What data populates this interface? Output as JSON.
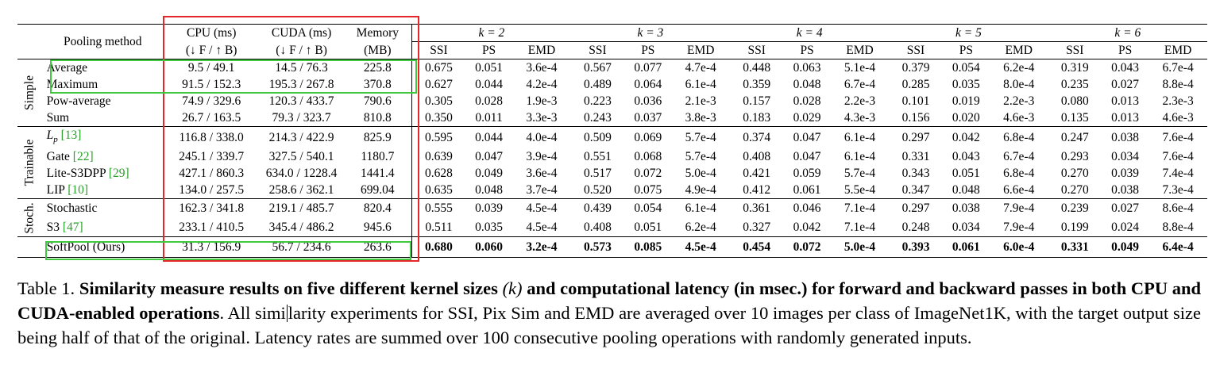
{
  "header": {
    "pooling_method": "Pooling method",
    "cpu": "CPU (ms)",
    "cuda": "CUDA (ms)",
    "memory": "Memory",
    "dir": "(↓ F / ↑ B)",
    "mb": "(MB)",
    "k_groups": [
      "k = 2",
      "k = 3",
      "k = 4",
      "k = 5",
      "k = 6"
    ],
    "metrics": [
      "SSI",
      "PS",
      "EMD"
    ]
  },
  "groups": [
    "Simple",
    "Trainable",
    "Stoch."
  ],
  "rows": [
    {
      "name": "Average",
      "ref": "",
      "cpu": "9.5 / 49.1",
      "cuda": "14.5 / 76.3",
      "mem": "225.8",
      "vals": [
        "0.675",
        "0.051",
        "3.6e-4",
        "0.567",
        "0.077",
        "4.7e-4",
        "0.448",
        "0.063",
        "5.1e-4",
        "0.379",
        "0.054",
        "6.2e-4",
        "0.319",
        "0.043",
        "6.7e-4"
      ]
    },
    {
      "name": "Maximum",
      "ref": "",
      "cpu": "91.5 / 152.3",
      "cuda": "195.3 / 267.8",
      "mem": "370.8",
      "vals": [
        "0.627",
        "0.044",
        "4.2e-4",
        "0.489",
        "0.064",
        "6.1e-4",
        "0.359",
        "0.048",
        "6.7e-4",
        "0.285",
        "0.035",
        "8.0e-4",
        "0.235",
        "0.027",
        "8.8e-4"
      ]
    },
    {
      "name": "Pow-average",
      "ref": "",
      "cpu": "74.9 / 329.6",
      "cuda": "120.3 / 433.7",
      "mem": "790.6",
      "vals": [
        "0.305",
        "0.028",
        "1.9e-3",
        "0.223",
        "0.036",
        "2.1e-3",
        "0.157",
        "0.028",
        "2.2e-3",
        "0.101",
        "0.019",
        "2.2e-3",
        "0.080",
        "0.013",
        "2.3e-3"
      ]
    },
    {
      "name": "Sum",
      "ref": "",
      "cpu": "26.7 / 163.5",
      "cuda": "79.3 / 323.7",
      "mem": "810.8",
      "vals": [
        "0.350",
        "0.011",
        "3.3e-3",
        "0.243",
        "0.037",
        "3.8e-3",
        "0.183",
        "0.029",
        "4.3e-3",
        "0.156",
        "0.020",
        "4.6e-3",
        "0.135",
        "0.013",
        "4.6e-3"
      ]
    },
    {
      "name": "Lp",
      "ref": "[13]",
      "cpu": "116.8 / 338.0",
      "cuda": "214.3 / 422.9",
      "mem": "825.9",
      "vals": [
        "0.595",
        "0.044",
        "4.0e-4",
        "0.509",
        "0.069",
        "5.7e-4",
        "0.374",
        "0.047",
        "6.1e-4",
        "0.297",
        "0.042",
        "6.8e-4",
        "0.247",
        "0.038",
        "7.6e-4"
      ]
    },
    {
      "name": "Gate",
      "ref": "[22]",
      "cpu": "245.1 / 339.7",
      "cuda": "327.5 / 540.1",
      "mem": "1180.7",
      "vals": [
        "0.639",
        "0.047",
        "3.9e-4",
        "0.551",
        "0.068",
        "5.7e-4",
        "0.408",
        "0.047",
        "6.1e-4",
        "0.331",
        "0.043",
        "6.7e-4",
        "0.293",
        "0.034",
        "7.6e-4"
      ]
    },
    {
      "name": "Lite-S3DPP",
      "ref": "[29]",
      "cpu": "427.1 / 860.3",
      "cuda": "634.0 / 1228.4",
      "mem": "1441.4",
      "vals": [
        "0.628",
        "0.049",
        "3.6e-4",
        "0.517",
        "0.072",
        "5.0e-4",
        "0.421",
        "0.059",
        "5.7e-4",
        "0.343",
        "0.051",
        "6.8e-4",
        "0.270",
        "0.039",
        "7.4e-4"
      ]
    },
    {
      "name": "LIP",
      "ref": "[10]",
      "cpu": "134.0 / 257.5",
      "cuda": "258.6 / 362.1",
      "mem": "699.04",
      "vals": [
        "0.635",
        "0.048",
        "3.7e-4",
        "0.520",
        "0.075",
        "4.9e-4",
        "0.412",
        "0.061",
        "5.5e-4",
        "0.347",
        "0.048",
        "6.6e-4",
        "0.270",
        "0.038",
        "7.3e-4"
      ]
    },
    {
      "name": "Stochastic",
      "ref": "",
      "cpu": "162.3 / 341.8",
      "cuda": "219.1 / 485.7",
      "mem": "820.4",
      "vals": [
        "0.555",
        "0.039",
        "4.5e-4",
        "0.439",
        "0.054",
        "6.1e-4",
        "0.361",
        "0.046",
        "7.1e-4",
        "0.297",
        "0.038",
        "7.9e-4",
        "0.239",
        "0.027",
        "8.6e-4"
      ]
    },
    {
      "name": "S3",
      "ref": "[47]",
      "cpu": "233.1 / 410.5",
      "cuda": "345.4 / 486.2",
      "mem": "945.6",
      "vals": [
        "0.511",
        "0.035",
        "4.5e-4",
        "0.408",
        "0.051",
        "6.2e-4",
        "0.327",
        "0.042",
        "7.1e-4",
        "0.248",
        "0.034",
        "7.9e-4",
        "0.199",
        "0.024",
        "8.8e-4"
      ]
    },
    {
      "name": "SoftPool (Ours)",
      "ref": "",
      "cpu": "31.3 / 156.9",
      "cuda": "56.7 / 234.6",
      "mem": "263.6",
      "vals": [
        "0.680",
        "0.060",
        "3.2e-4",
        "0.573",
        "0.085",
        "4.5e-4",
        "0.454",
        "0.072",
        "5.0e-4",
        "0.393",
        "0.061",
        "6.0e-4",
        "0.331",
        "0.049",
        "6.4e-4"
      ]
    }
  ],
  "caption": {
    "label": "Table 1.",
    "bold1": "Similarity measure results on five different kernel sizes",
    "k_paren": "(k)",
    "bold2": "and computational latency (in msec.) for forward and backward passes in both CPU and CUDA-enabled operations",
    "rest_a": ". All simi",
    "rest_b": "larity experiments for SSI, Pix Sim and EMD are averaged over 10 images per class of ImageNet1K, with the target output size being half of that of the original.  Latency rates are summed over 100 consecutive pooling operations with randomly generated inputs."
  }
}
